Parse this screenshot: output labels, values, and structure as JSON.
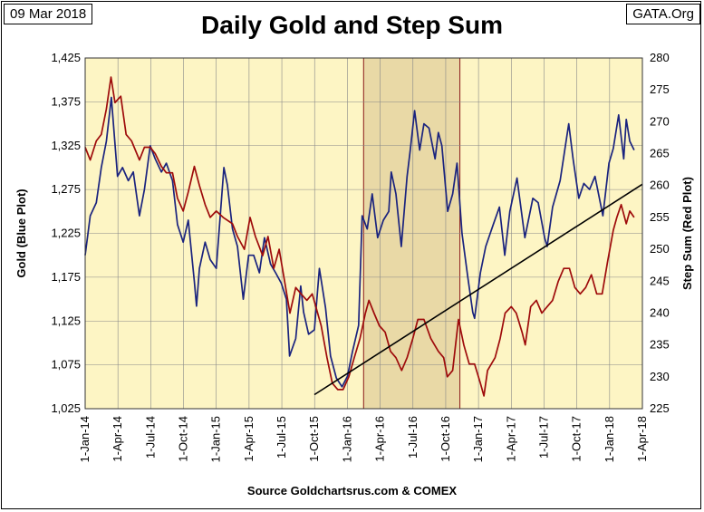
{
  "header": {
    "date": "09 Mar 2018",
    "brand": "GATA.Org"
  },
  "chart_data": {
    "type": "line",
    "title": "Daily Gold and Step Sum",
    "source": "Source Goldchartsrus.com & COMEX",
    "ylabel_left": "Gold   (Blue Plot)",
    "ylabel_right": "Step Sum   (Red Plot)",
    "x_range": [
      "2014-01-01",
      "2018-04-01"
    ],
    "x_ticks": [
      "1-Jan-14",
      "1-Apr-14",
      "1-Jul-14",
      "1-Oct-14",
      "1-Jan-15",
      "1-Apr-15",
      "1-Jul-15",
      "1-Oct-15",
      "1-Jan-16",
      "1-Apr-16",
      "1-Jul-16",
      "1-Oct-16",
      "1-Jan-17",
      "1-Apr-17",
      "1-Jul-17",
      "1-Oct-17",
      "1-Jan-18",
      "1-Apr-18"
    ],
    "y_left": {
      "min": 1025,
      "max": 1425,
      "ticks": [
        "1,025",
        "1,075",
        "1,125",
        "1,175",
        "1,225",
        "1,275",
        "1,325",
        "1,375",
        "1,425"
      ]
    },
    "y_right": {
      "min": 225,
      "max": 280,
      "ticks": [
        "225",
        "230",
        "235",
        "240",
        "245",
        "250",
        "255",
        "260",
        "265",
        "270",
        "275",
        "280"
      ]
    },
    "grid": true,
    "highlight_band": {
      "start": "2016-02-15",
      "end": "2016-11-09"
    },
    "series": [
      {
        "axis": "left",
        "color": "#1a237e",
        "points": [
          [
            "2014-01-01",
            1200
          ],
          [
            "2014-01-15",
            1245
          ],
          [
            "2014-02-01",
            1260
          ],
          [
            "2014-02-15",
            1300
          ],
          [
            "2014-03-01",
            1330
          ],
          [
            "2014-03-15",
            1380
          ],
          [
            "2014-04-01",
            1290
          ],
          [
            "2014-04-15",
            1300
          ],
          [
            "2014-05-01",
            1285
          ],
          [
            "2014-05-15",
            1295
          ],
          [
            "2014-06-01",
            1245
          ],
          [
            "2014-06-15",
            1275
          ],
          [
            "2014-07-01",
            1325
          ],
          [
            "2014-07-15",
            1310
          ],
          [
            "2014-08-01",
            1295
          ],
          [
            "2014-08-15",
            1305
          ],
          [
            "2014-09-01",
            1285
          ],
          [
            "2014-09-15",
            1235
          ],
          [
            "2014-10-01",
            1215
          ],
          [
            "2014-10-15",
            1240
          ],
          [
            "2014-11-01",
            1170
          ],
          [
            "2014-11-07",
            1142
          ],
          [
            "2014-11-15",
            1185
          ],
          [
            "2014-12-01",
            1215
          ],
          [
            "2014-12-15",
            1195
          ],
          [
            "2015-01-01",
            1185
          ],
          [
            "2015-01-22",
            1300
          ],
          [
            "2015-02-01",
            1280
          ],
          [
            "2015-02-15",
            1230
          ],
          [
            "2015-03-01",
            1210
          ],
          [
            "2015-03-17",
            1150
          ],
          [
            "2015-04-01",
            1200
          ],
          [
            "2015-04-15",
            1200
          ],
          [
            "2015-05-01",
            1180
          ],
          [
            "2015-05-15",
            1220
          ],
          [
            "2015-06-01",
            1190
          ],
          [
            "2015-06-15",
            1180
          ],
          [
            "2015-07-01",
            1168
          ],
          [
            "2015-07-15",
            1150
          ],
          [
            "2015-07-24",
            1085
          ],
          [
            "2015-08-10",
            1105
          ],
          [
            "2015-08-24",
            1165
          ],
          [
            "2015-09-01",
            1135
          ],
          [
            "2015-09-15",
            1110
          ],
          [
            "2015-10-01",
            1115
          ],
          [
            "2015-10-15",
            1185
          ],
          [
            "2015-11-01",
            1140
          ],
          [
            "2015-11-15",
            1085
          ],
          [
            "2015-12-01",
            1060
          ],
          [
            "2015-12-17",
            1050
          ],
          [
            "2016-01-01",
            1062
          ],
          [
            "2016-01-15",
            1090
          ],
          [
            "2016-02-01",
            1120
          ],
          [
            "2016-02-11",
            1245
          ],
          [
            "2016-02-25",
            1230
          ],
          [
            "2016-03-10",
            1270
          ],
          [
            "2016-03-25",
            1220
          ],
          [
            "2016-04-10",
            1240
          ],
          [
            "2016-04-25",
            1250
          ],
          [
            "2016-05-02",
            1295
          ],
          [
            "2016-05-15",
            1270
          ],
          [
            "2016-05-30",
            1210
          ],
          [
            "2016-06-15",
            1290
          ],
          [
            "2016-06-24",
            1320
          ],
          [
            "2016-07-06",
            1365
          ],
          [
            "2016-07-20",
            1320
          ],
          [
            "2016-08-01",
            1350
          ],
          [
            "2016-08-15",
            1345
          ],
          [
            "2016-09-01",
            1310
          ],
          [
            "2016-09-10",
            1340
          ],
          [
            "2016-09-20",
            1325
          ],
          [
            "2016-10-06",
            1250
          ],
          [
            "2016-10-20",
            1270
          ],
          [
            "2016-11-01",
            1305
          ],
          [
            "2016-11-15",
            1225
          ],
          [
            "2016-12-01",
            1175
          ],
          [
            "2016-12-15",
            1135
          ],
          [
            "2016-12-20",
            1128
          ],
          [
            "2017-01-05",
            1180
          ],
          [
            "2017-01-20",
            1210
          ],
          [
            "2017-02-10",
            1235
          ],
          [
            "2017-02-27",
            1255
          ],
          [
            "2017-03-14",
            1200
          ],
          [
            "2017-03-28",
            1250
          ],
          [
            "2017-04-17",
            1288
          ],
          [
            "2017-05-09",
            1220
          ],
          [
            "2017-05-31",
            1265
          ],
          [
            "2017-06-15",
            1260
          ],
          [
            "2017-07-03",
            1220
          ],
          [
            "2017-07-10",
            1210
          ],
          [
            "2017-07-25",
            1255
          ],
          [
            "2017-08-15",
            1285
          ],
          [
            "2017-09-08",
            1350
          ],
          [
            "2017-09-20",
            1310
          ],
          [
            "2017-10-06",
            1265
          ],
          [
            "2017-10-20",
            1282
          ],
          [
            "2017-11-05",
            1275
          ],
          [
            "2017-11-20",
            1290
          ],
          [
            "2017-12-12",
            1245
          ],
          [
            "2017-12-29",
            1305
          ],
          [
            "2018-01-10",
            1322
          ],
          [
            "2018-01-25",
            1360
          ],
          [
            "2018-02-08",
            1310
          ],
          [
            "2018-02-15",
            1355
          ],
          [
            "2018-02-25",
            1330
          ],
          [
            "2018-03-09",
            1320
          ]
        ]
      },
      {
        "axis": "right",
        "color": "#9e0b0b",
        "points": [
          [
            "2014-01-01",
            266
          ],
          [
            "2014-01-15",
            264
          ],
          [
            "2014-02-01",
            267
          ],
          [
            "2014-02-15",
            268
          ],
          [
            "2014-03-01",
            272
          ],
          [
            "2014-03-14",
            277
          ],
          [
            "2014-03-25",
            273
          ],
          [
            "2014-04-10",
            274
          ],
          [
            "2014-04-25",
            268
          ],
          [
            "2014-05-10",
            267
          ],
          [
            "2014-06-01",
            264
          ],
          [
            "2014-06-15",
            266
          ],
          [
            "2014-07-01",
            266
          ],
          [
            "2014-07-15",
            265
          ],
          [
            "2014-08-01",
            263
          ],
          [
            "2014-08-15",
            262
          ],
          [
            "2014-09-01",
            262
          ],
          [
            "2014-09-15",
            258
          ],
          [
            "2014-10-01",
            256
          ],
          [
            "2014-10-15",
            259
          ],
          [
            "2014-11-01",
            263
          ],
          [
            "2014-11-15",
            260
          ],
          [
            "2014-12-01",
            257
          ],
          [
            "2014-12-15",
            255
          ],
          [
            "2015-01-01",
            256
          ],
          [
            "2015-01-20",
            255
          ],
          [
            "2015-02-15",
            254
          ],
          [
            "2015-03-01",
            252
          ],
          [
            "2015-03-20",
            250
          ],
          [
            "2015-04-05",
            255
          ],
          [
            "2015-04-20",
            252
          ],
          [
            "2015-05-10",
            249
          ],
          [
            "2015-05-25",
            252
          ],
          [
            "2015-06-10",
            247
          ],
          [
            "2015-06-25",
            250
          ],
          [
            "2015-07-10",
            245
          ],
          [
            "2015-07-25",
            240
          ],
          [
            "2015-08-10",
            244
          ],
          [
            "2015-08-25",
            243
          ],
          [
            "2015-09-10",
            242
          ],
          [
            "2015-09-25",
            243
          ],
          [
            "2015-10-05",
            241
          ],
          [
            "2015-10-20",
            238
          ],
          [
            "2015-11-05",
            233
          ],
          [
            "2015-11-20",
            229
          ],
          [
            "2015-12-05",
            228
          ],
          [
            "2015-12-20",
            228
          ],
          [
            "2016-01-05",
            230
          ],
          [
            "2016-01-20",
            233
          ],
          [
            "2016-02-05",
            236
          ],
          [
            "2016-02-20",
            240
          ],
          [
            "2016-03-01",
            242
          ],
          [
            "2016-03-15",
            240
          ],
          [
            "2016-03-30",
            238
          ],
          [
            "2016-04-15",
            237
          ],
          [
            "2016-04-30",
            234
          ],
          [
            "2016-05-15",
            233
          ],
          [
            "2016-05-31",
            231
          ],
          [
            "2016-06-15",
            233
          ],
          [
            "2016-07-01",
            236
          ],
          [
            "2016-07-15",
            239
          ],
          [
            "2016-08-01",
            239
          ],
          [
            "2016-08-20",
            236
          ],
          [
            "2016-09-10",
            234
          ],
          [
            "2016-09-25",
            233
          ],
          [
            "2016-10-05",
            230
          ],
          [
            "2016-10-20",
            231
          ],
          [
            "2016-11-05",
            239
          ],
          [
            "2016-11-20",
            235
          ],
          [
            "2016-12-05",
            232
          ],
          [
            "2016-12-20",
            232
          ],
          [
            "2017-01-05",
            229
          ],
          [
            "2017-01-15",
            227
          ],
          [
            "2017-01-25",
            231
          ],
          [
            "2017-02-15",
            233
          ],
          [
            "2017-03-01",
            236
          ],
          [
            "2017-03-15",
            240
          ],
          [
            "2017-04-01",
            241
          ],
          [
            "2017-04-15",
            240
          ],
          [
            "2017-05-01",
            237
          ],
          [
            "2017-05-10",
            235
          ],
          [
            "2017-05-25",
            241
          ],
          [
            "2017-06-10",
            242
          ],
          [
            "2017-06-25",
            240
          ],
          [
            "2017-07-10",
            241
          ],
          [
            "2017-07-25",
            242
          ],
          [
            "2017-08-10",
            245
          ],
          [
            "2017-08-25",
            247
          ],
          [
            "2017-09-10",
            247
          ],
          [
            "2017-09-25",
            244
          ],
          [
            "2017-10-10",
            243
          ],
          [
            "2017-10-25",
            244
          ],
          [
            "2017-11-10",
            246
          ],
          [
            "2017-11-25",
            243
          ],
          [
            "2017-12-10",
            243
          ],
          [
            "2017-12-25",
            248
          ],
          [
            "2018-01-10",
            253
          ],
          [
            "2018-01-20",
            255
          ],
          [
            "2018-02-01",
            257
          ],
          [
            "2018-02-15",
            254
          ],
          [
            "2018-02-25",
            256
          ],
          [
            "2018-03-09",
            255
          ]
        ]
      },
      {
        "axis": "right",
        "color": "#000000",
        "points": [
          [
            "2015-10-01",
            227.2
          ],
          [
            "2018-04-01",
            260.2
          ]
        ]
      }
    ]
  }
}
